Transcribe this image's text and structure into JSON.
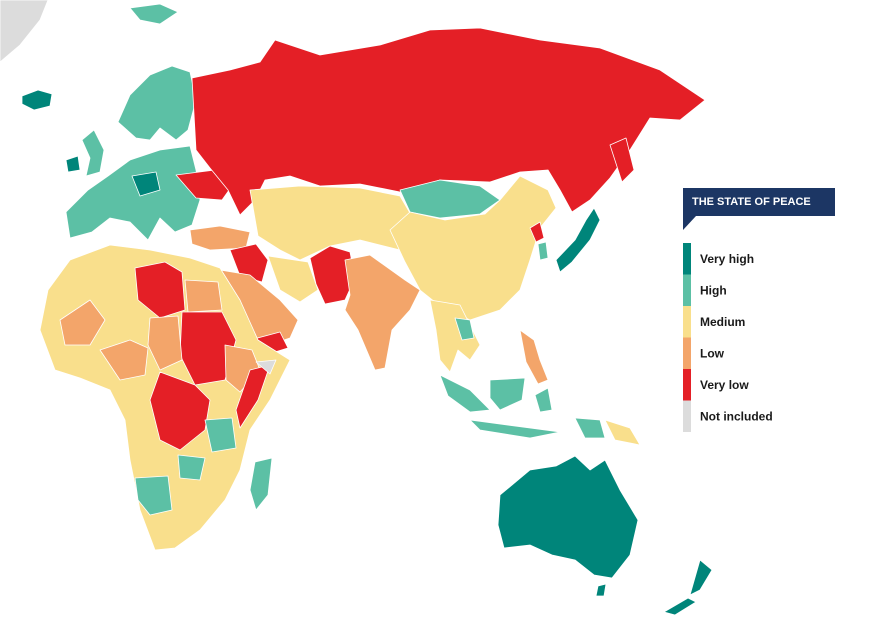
{
  "legend": {
    "title": "THE STATE OF PEACE",
    "items": [
      {
        "label": "Very high",
        "color": "#00857a"
      },
      {
        "label": "High",
        "color": "#5cc0a5"
      },
      {
        "label": "Medium",
        "color": "#f9df8c"
      },
      {
        "label": "Low",
        "color": "#f3a56a"
      },
      {
        "label": "Very low",
        "color": "#e41f26"
      },
      {
        "label": "Not included",
        "color": "#dcdcdc"
      }
    ]
  }
}
